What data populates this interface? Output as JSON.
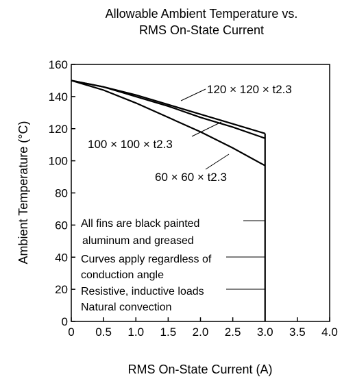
{
  "chart_data": {
    "type": "line",
    "title": [
      "Allowable Ambient Temperature vs.",
      "RMS On-State Current"
    ],
    "xlabel": "RMS On-State Current  (A)",
    "ylabel": "Ambient Temperature  (°C)",
    "xlim": [
      0,
      4.0
    ],
    "ylim": [
      0,
      160
    ],
    "grid": false,
    "x_ticks": [
      "0",
      "0.5",
      "1.0",
      "1.5",
      "2.0",
      "2.5",
      "3.0",
      "3.5",
      "4.0"
    ],
    "y_ticks": [
      "0",
      "20",
      "40",
      "60",
      "80",
      "100",
      "120",
      "140",
      "160"
    ],
    "series": [
      {
        "name": "120 × 120 × t2.3",
        "x": [
          0,
          0.5,
          1.0,
          1.5,
          2.0,
          2.5,
          3.0
        ],
        "y": [
          150,
          146,
          141,
          135,
          129,
          123,
          117
        ]
      },
      {
        "name": "100 × 100 × t2.3",
        "x": [
          0,
          0.5,
          1.0,
          1.5,
          2.0,
          2.5,
          3.0
        ],
        "y": [
          150,
          146,
          140,
          134,
          127,
          121,
          114
        ]
      },
      {
        "name": "60 × 60 × t2.3",
        "x": [
          0,
          0.5,
          1.0,
          1.5,
          2.0,
          2.5,
          3.0
        ],
        "y": [
          150,
          144,
          136,
          127,
          118,
          108,
          97
        ]
      }
    ],
    "cutoff_x": 3.0,
    "notes": [
      "All fins are black painted",
      "aluminum and greased",
      "Curves apply regardless of",
      "conduction angle",
      "Resistive, inductive loads",
      "Natural convection"
    ]
  }
}
